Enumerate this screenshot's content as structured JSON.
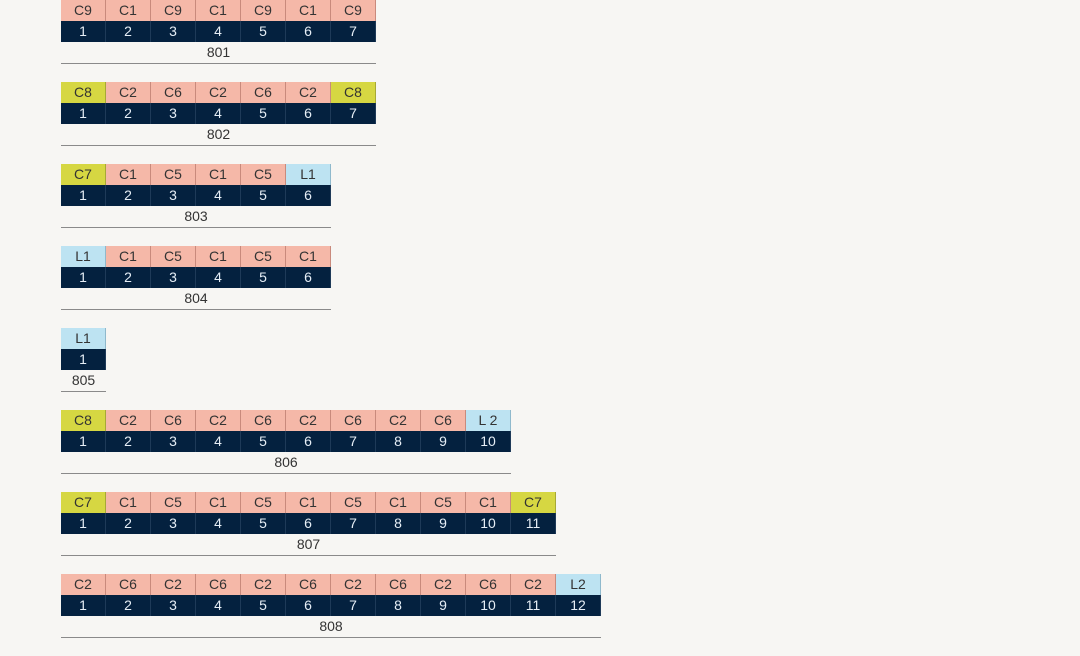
{
  "palette": {
    "background": "#f7f6f3",
    "type_default": "#f5b8a8",
    "type_yellow": "#d6d742",
    "type_blue": "#bde3f2",
    "number_bg": "#04213f",
    "number_text": "#e6eef6",
    "text": "#333333"
  },
  "blocks": [
    {
      "label": "801",
      "cells": [
        {
          "type": "C9",
          "num": "1",
          "color": "pink"
        },
        {
          "type": "C1",
          "num": "2",
          "color": "pink"
        },
        {
          "type": "C9",
          "num": "3",
          "color": "pink"
        },
        {
          "type": "C1",
          "num": "4",
          "color": "pink"
        },
        {
          "type": "C9",
          "num": "5",
          "color": "pink"
        },
        {
          "type": "C1",
          "num": "6",
          "color": "pink"
        },
        {
          "type": "C9",
          "num": "7",
          "color": "pink"
        }
      ]
    },
    {
      "label": "802",
      "cells": [
        {
          "type": "C8",
          "num": "1",
          "color": "yellow"
        },
        {
          "type": "C2",
          "num": "2",
          "color": "pink"
        },
        {
          "type": "C6",
          "num": "3",
          "color": "pink"
        },
        {
          "type": "C2",
          "num": "4",
          "color": "pink"
        },
        {
          "type": "C6",
          "num": "5",
          "color": "pink"
        },
        {
          "type": "C2",
          "num": "6",
          "color": "pink"
        },
        {
          "type": "C8",
          "num": "7",
          "color": "yellow"
        }
      ]
    },
    {
      "label": "803",
      "cells": [
        {
          "type": "C7",
          "num": "1",
          "color": "yellow"
        },
        {
          "type": "C1",
          "num": "2",
          "color": "pink"
        },
        {
          "type": "C5",
          "num": "3",
          "color": "pink"
        },
        {
          "type": "C1",
          "num": "4",
          "color": "pink"
        },
        {
          "type": "C5",
          "num": "5",
          "color": "pink"
        },
        {
          "type": "L1",
          "num": "6",
          "color": "blue"
        }
      ]
    },
    {
      "label": "804",
      "cells": [
        {
          "type": "L1",
          "num": "1",
          "color": "blue"
        },
        {
          "type": "C1",
          "num": "2",
          "color": "pink"
        },
        {
          "type": "C5",
          "num": "3",
          "color": "pink"
        },
        {
          "type": "C1",
          "num": "4",
          "color": "pink"
        },
        {
          "type": "C5",
          "num": "5",
          "color": "pink"
        },
        {
          "type": "C1",
          "num": "6",
          "color": "pink"
        }
      ]
    },
    {
      "label": "805",
      "cells": [
        {
          "type": "L1",
          "num": "1",
          "color": "blue"
        }
      ]
    },
    {
      "label": "806",
      "cells": [
        {
          "type": "C8",
          "num": "1",
          "color": "yellow"
        },
        {
          "type": "C2",
          "num": "2",
          "color": "pink"
        },
        {
          "type": "C6",
          "num": "3",
          "color": "pink"
        },
        {
          "type": "C2",
          "num": "4",
          "color": "pink"
        },
        {
          "type": "C6",
          "num": "5",
          "color": "pink"
        },
        {
          "type": "C2",
          "num": "6",
          "color": "pink"
        },
        {
          "type": "C6",
          "num": "7",
          "color": "pink"
        },
        {
          "type": "C2",
          "num": "8",
          "color": "pink"
        },
        {
          "type": "C6",
          "num": "9",
          "color": "pink"
        },
        {
          "type": "L 2",
          "num": "10",
          "color": "blue"
        }
      ]
    },
    {
      "label": "807",
      "cells": [
        {
          "type": "C7",
          "num": "1",
          "color": "yellow"
        },
        {
          "type": "C1",
          "num": "2",
          "color": "pink"
        },
        {
          "type": "C5",
          "num": "3",
          "color": "pink"
        },
        {
          "type": "C1",
          "num": "4",
          "color": "pink"
        },
        {
          "type": "C5",
          "num": "5",
          "color": "pink"
        },
        {
          "type": "C1",
          "num": "6",
          "color": "pink"
        },
        {
          "type": "C5",
          "num": "7",
          "color": "pink"
        },
        {
          "type": "C1",
          "num": "8",
          "color": "pink"
        },
        {
          "type": "C5",
          "num": "9",
          "color": "pink"
        },
        {
          "type": "C1",
          "num": "10",
          "color": "pink"
        },
        {
          "type": "C7",
          "num": "11",
          "color": "yellow"
        }
      ]
    },
    {
      "label": "808",
      "cells": [
        {
          "type": "C2",
          "num": "1",
          "color": "pink"
        },
        {
          "type": "C6",
          "num": "2",
          "color": "pink"
        },
        {
          "type": "C2",
          "num": "3",
          "color": "pink"
        },
        {
          "type": "C6",
          "num": "4",
          "color": "pink"
        },
        {
          "type": "C2",
          "num": "5",
          "color": "pink"
        },
        {
          "type": "C6",
          "num": "6",
          "color": "pink"
        },
        {
          "type": "C2",
          "num": "7",
          "color": "pink"
        },
        {
          "type": "C6",
          "num": "8",
          "color": "pink"
        },
        {
          "type": "C2",
          "num": "9",
          "color": "pink"
        },
        {
          "type": "C6",
          "num": "10",
          "color": "pink"
        },
        {
          "type": "C2",
          "num": "11",
          "color": "pink"
        },
        {
          "type": "L2",
          "num": "12",
          "color": "blue"
        }
      ]
    }
  ]
}
